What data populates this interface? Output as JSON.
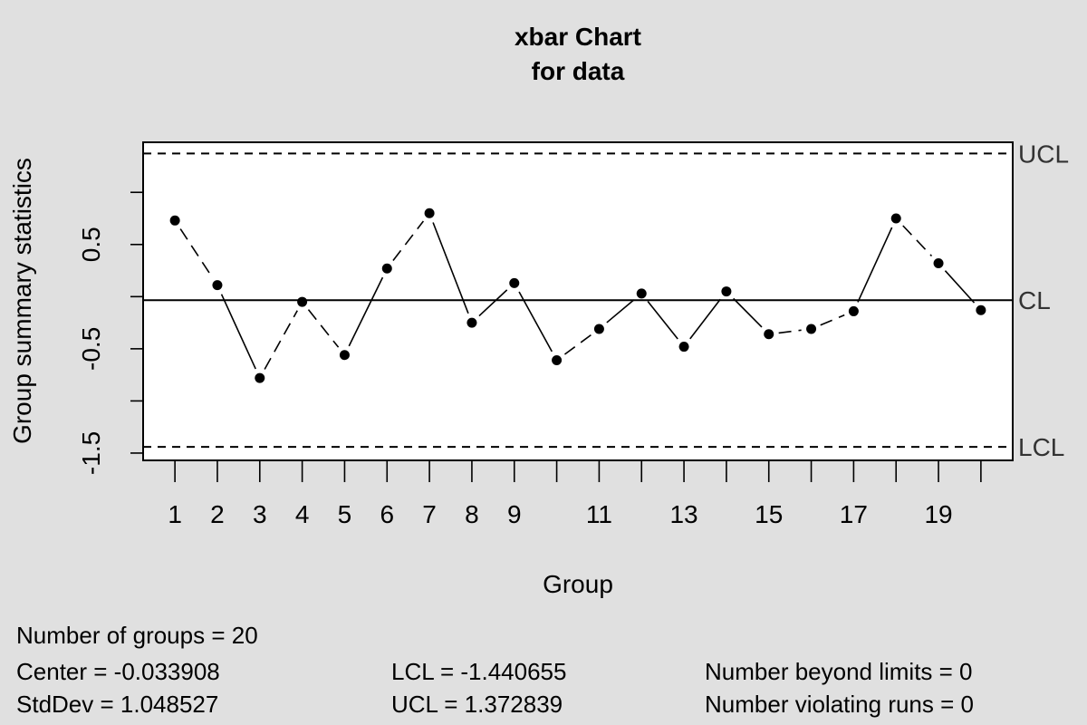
{
  "chart_data": {
    "type": "line",
    "title": "xbar Chart",
    "subtitle": "for data",
    "xlabel": "Group",
    "ylabel": "Group summary statistics",
    "x": [
      1,
      2,
      3,
      4,
      5,
      6,
      7,
      8,
      9,
      10,
      11,
      12,
      13,
      14,
      15,
      16,
      17,
      18,
      19,
      20
    ],
    "values": [
      0.73,
      0.11,
      -0.78,
      -0.05,
      -0.56,
      0.27,
      0.8,
      -0.25,
      0.13,
      -0.61,
      -0.31,
      0.03,
      -0.48,
      0.05,
      -0.36,
      -0.31,
      -0.14,
      0.75,
      0.32,
      -0.13
    ],
    "xlim": [
      0.25,
      20.75
    ],
    "ylim": [
      -1.57,
      1.48
    ],
    "x_ticks": [
      1,
      2,
      3,
      4,
      5,
      6,
      7,
      8,
      9,
      10,
      11,
      12,
      13,
      14,
      15,
      16,
      17,
      18,
      19,
      20
    ],
    "x_tick_labels": [
      "1",
      "2",
      "3",
      "4",
      "5",
      "6",
      "7",
      "8",
      "9",
      "",
      "11",
      "",
      "13",
      "",
      "15",
      "",
      "17",
      "",
      "19",
      ""
    ],
    "y_ticks": [
      -1.5,
      -1.0,
      -0.5,
      0.0,
      0.5,
      1.0
    ],
    "y_tick_labels": [
      "-1.5",
      "",
      "-0.5",
      "",
      "0.5",
      ""
    ],
    "center": -0.033908,
    "lcl": -1.440655,
    "ucl": 1.372839,
    "limit_labels": {
      "ucl": "UCL",
      "cl": "CL",
      "lcl": "LCL"
    },
    "grid": false,
    "colors": {
      "background": "#e0e0e0",
      "plot_area": "#ffffff",
      "line": "#000000",
      "limit_label": "#333333"
    }
  },
  "stats": {
    "groups": "Number of groups = 20",
    "center": "Center = -0.033908",
    "stddev": "StdDev = 1.048527",
    "lcl": "LCL = -1.440655",
    "ucl": "UCL = 1.372839",
    "beyond_limits": "Number beyond limits = 0",
    "violating_runs": "Number violating runs = 0"
  }
}
